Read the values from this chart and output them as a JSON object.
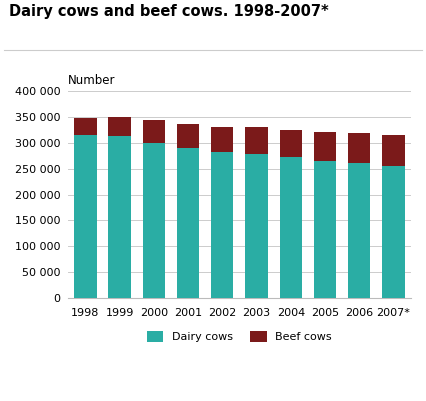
{
  "title": "Dairy cows and beef cows. 1998-2007*",
  "number_label": "Number",
  "years": [
    "1998",
    "1999",
    "2000",
    "2001",
    "2002",
    "2003",
    "2004",
    "2005",
    "2006",
    "2007*"
  ],
  "dairy_cows": [
    315000,
    314000,
    300000,
    291000,
    282000,
    279000,
    273000,
    265000,
    261000,
    256000
  ],
  "beef_cows": [
    33000,
    37000,
    44000,
    46000,
    49000,
    52000,
    52000,
    57000,
    59000,
    59000
  ],
  "dairy_color": "#2AADA4",
  "beef_color": "#7B1A1A",
  "ylim": [
    0,
    400000
  ],
  "yticks": [
    0,
    50000,
    100000,
    150000,
    200000,
    250000,
    300000,
    350000,
    400000
  ],
  "background_color": "#ffffff",
  "grid_color": "#cccccc",
  "legend_labels": [
    "Dairy cows",
    "Beef cows"
  ],
  "title_fontsize": 10.5,
  "number_fontsize": 8.5,
  "tick_fontsize": 8
}
